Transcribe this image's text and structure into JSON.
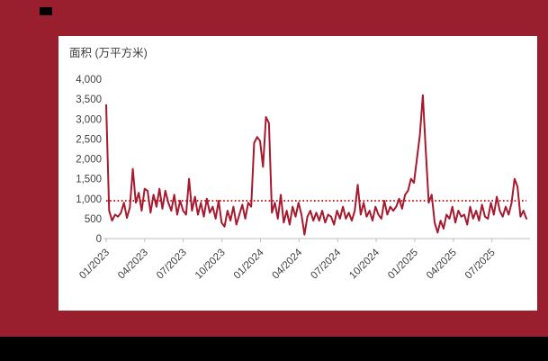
{
  "frame": {
    "background_color": "#9A1F2E",
    "bottom_bar_color": "#000000"
  },
  "chart_data": {
    "type": "line",
    "title": "面积 (万平方米)",
    "ylabel": "面积 (万平方米)",
    "xlabel": "",
    "ylim": [
      0,
      4000
    ],
    "ytick_step": 500,
    "ytick_labels": [
      "0",
      "500",
      "1,000",
      "1,500",
      "2,000",
      "2,500",
      "3,000",
      "3,500",
      "4,000"
    ],
    "x_tick_labels": [
      "01/2023",
      "04/2023",
      "07/2023",
      "10/2023",
      "01/2024",
      "04/2024",
      "07/2024",
      "10/2024",
      "01/2025",
      "04/2025",
      "07/2025"
    ],
    "x_tick_month_offsets": [
      0,
      3,
      6,
      9,
      12,
      15,
      18,
      21,
      24,
      27,
      30
    ],
    "weeks_per_month": 4.345,
    "grid": false,
    "legend": "none",
    "average_line_value": 950,
    "line_color": "#A6192E",
    "average_line_color": "#C00000",
    "axis_color": "#BFBFBF",
    "tick_label_color": "#404040",
    "series": [
      {
        "name": "",
        "values": [
          3350,
          700,
          450,
          600,
          550,
          650,
          900,
          520,
          780,
          1750,
          900,
          1150,
          700,
          1250,
          1200,
          650,
          1100,
          800,
          1250,
          750,
          1200,
          900,
          700,
          1100,
          600,
          950,
          700,
          600,
          1500,
          700,
          1050,
          600,
          900,
          550,
          1000,
          650,
          800,
          500,
          950,
          400,
          300,
          700,
          450,
          800,
          350,
          600,
          850,
          500,
          900,
          800,
          2400,
          2550,
          2450,
          1800,
          3050,
          2900,
          650,
          900,
          500,
          1100,
          400,
          700,
          350,
          800,
          550,
          900,
          600,
          100,
          550,
          700,
          450,
          650,
          450,
          700,
          400,
          600,
          550,
          350,
          700,
          500,
          800,
          500,
          650,
          450,
          700,
          1350,
          600,
          900,
          550,
          700,
          450,
          800,
          600,
          500,
          950,
          600,
          800,
          700,
          800,
          1000,
          750,
          1100,
          1200,
          1500,
          1400,
          2000,
          2600,
          3600,
          2200,
          900,
          1100,
          400,
          150,
          450,
          250,
          600,
          500,
          800,
          400,
          700,
          550,
          600,
          350,
          800,
          500,
          700,
          450,
          850,
          550,
          500,
          900,
          600,
          1050,
          700,
          550,
          800,
          600,
          900,
          1500,
          1300,
          550,
          700,
          500
        ]
      }
    ]
  }
}
